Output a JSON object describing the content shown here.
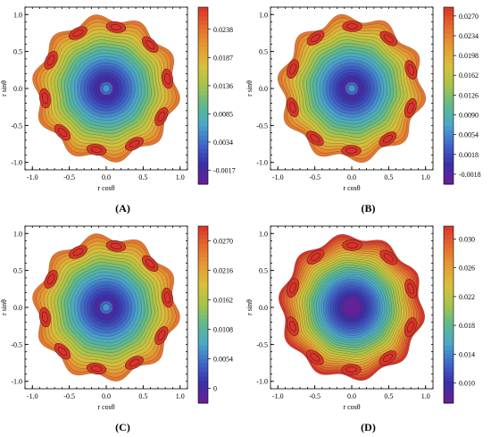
{
  "chart_data": [
    {
      "type": "contour",
      "panel_label": "(A)",
      "xlabel": "r cosθ",
      "ylabel": "r sinθ",
      "xlim": [
        -1.1,
        1.1
      ],
      "ylim": [
        -1.1,
        1.1
      ],
      "x_ticks": [
        "-1.0",
        "-0.5",
        "0.0",
        "0.5",
        "1.0"
      ],
      "y_ticks": [
        "1.0",
        "0.5",
        "0.0",
        "-0.5",
        "-1.0"
      ],
      "colorbar": {
        "range": [
          -0.0042,
          0.0278
        ],
        "tick_labels": [
          "0.0238",
          "0.0187",
          "0.0136",
          "0.0085",
          "0.0034",
          "-0.0017"
        ],
        "tick_values": [
          0.0238,
          0.0187,
          0.0136,
          0.0085,
          0.0034,
          -0.0017
        ]
      },
      "lobes": 10,
      "boundary_wave_amplitude": 0.055,
      "inner_style": "rings"
    },
    {
      "type": "contour",
      "panel_label": "(B)",
      "xlabel": "r cosθ",
      "ylabel": "r sinθ",
      "xlim": [
        -1.1,
        1.1
      ],
      "ylim": [
        -1.1,
        1.1
      ],
      "x_ticks": [
        "-1.0",
        "-0.5",
        "0.0",
        "0.5",
        "1.0"
      ],
      "y_ticks": [
        "1.0",
        "0.5",
        "0.0",
        "-0.5",
        "-1.0"
      ],
      "colorbar": {
        "range": [
          -0.0036,
          0.0286
        ],
        "tick_labels": [
          "0.0270",
          "0.0234",
          "0.0198",
          "0.0162",
          "0.0126",
          "0.0090",
          "0.0054",
          "0.0018",
          "-0.0018"
        ],
        "tick_values": [
          0.027,
          0.0234,
          0.0198,
          0.0162,
          0.0126,
          0.009,
          0.0054,
          0.0018,
          -0.0018
        ]
      },
      "lobes": 10,
      "boundary_wave_amplitude": 0.06,
      "inner_style": "rings"
    },
    {
      "type": "contour",
      "panel_label": "(C)",
      "xlabel": "r cosθ",
      "ylabel": "r sinθ",
      "xlim": [
        -1.1,
        1.1
      ],
      "ylim": [
        -1.1,
        1.1
      ],
      "x_ticks": [
        "-1.0",
        "-0.5",
        "0.0",
        "0.5",
        "1.0"
      ],
      "y_ticks": [
        "1.0",
        "0.5",
        "0.0",
        "-0.5",
        "-1.0"
      ],
      "colorbar": {
        "range": [
          -0.0027,
          0.0297
        ],
        "tick_labels": [
          "0.0270",
          "0.0216",
          "0.0162",
          "0.0108",
          "0.0054",
          "0"
        ],
        "tick_values": [
          0.027,
          0.0216,
          0.0162,
          0.0108,
          0.0054,
          0
        ]
      },
      "lobes": 10,
      "boundary_wave_amplitude": 0.055,
      "inner_style": "rings"
    },
    {
      "type": "contour",
      "panel_label": "(D)",
      "xlabel": "r cosθ",
      "ylabel": "r sinθ",
      "xlim": [
        -1.1,
        1.1
      ],
      "ylim": [
        -1.1,
        1.1
      ],
      "x_ticks": [
        "-1.0",
        "-0.5",
        "0.0",
        "0.5",
        "1.0"
      ],
      "y_ticks": [
        "1.0",
        "0.5",
        "0.0",
        "-0.5",
        "-1.0"
      ],
      "colorbar": {
        "range": [
          0.0072,
          0.0318
        ],
        "tick_labels": [
          "0.030",
          "0.026",
          "0.022",
          "0.018",
          "0.014",
          "0.010"
        ],
        "tick_values": [
          0.03,
          0.026,
          0.022,
          0.018,
          0.014,
          0.01
        ]
      },
      "lobes": 10,
      "boundary_wave_amplitude": 0.045,
      "inner_style": "dense"
    }
  ],
  "colormap": [
    "#6a1f96",
    "#3b2fa8",
    "#3f66c9",
    "#4aa7c9",
    "#5fb98d",
    "#a6c44a",
    "#d8c03b",
    "#e59a33",
    "#e56a2c",
    "#d8342a"
  ],
  "frame_color": "#000000"
}
